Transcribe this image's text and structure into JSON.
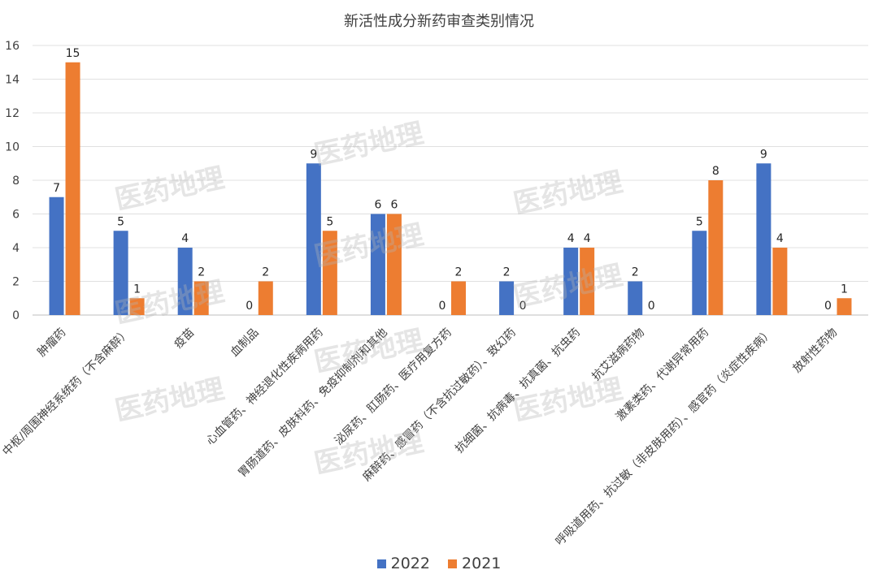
{
  "chart_data": {
    "type": "bar",
    "title": "新活性成分新药审查类别情况",
    "categories": [
      "肿瘤药",
      "中枢/周围神经系统药（不含麻醉）",
      "疫苗",
      "血制品",
      "心血管药、神经退化性疾病用药",
      "胃肠道药、皮肤科药、免疫抑制剂和其他",
      "泌尿药、肛肠药、医疗用复方药",
      "麻醉药、感冒药（不含抗过敏药）、致幻药",
      "抗细菌、抗病毒、抗真菌、抗虫药",
      "抗艾滋病药物",
      "激素类药、代谢异常用药",
      "呼吸道用药、抗过敏（非皮肤用药）、感官药（炎症性疾病）",
      "放射性药物"
    ],
    "series": [
      {
        "name": "2022",
        "color": "#4472c4",
        "values": [
          7,
          5,
          4,
          0,
          9,
          6,
          0,
          2,
          4,
          2,
          5,
          9,
          0
        ]
      },
      {
        "name": "2021",
        "color": "#ed7d31",
        "values": [
          15,
          1,
          2,
          2,
          5,
          6,
          2,
          0,
          4,
          0,
          8,
          4,
          1
        ]
      }
    ],
    "ylim": [
      0,
      16
    ],
    "yticks": [
      0,
      2,
      4,
      6,
      8,
      10,
      12,
      14,
      16
    ],
    "grid": true,
    "legend_position": "bottom",
    "data_labels": true
  },
  "watermark_text": "医药地理"
}
